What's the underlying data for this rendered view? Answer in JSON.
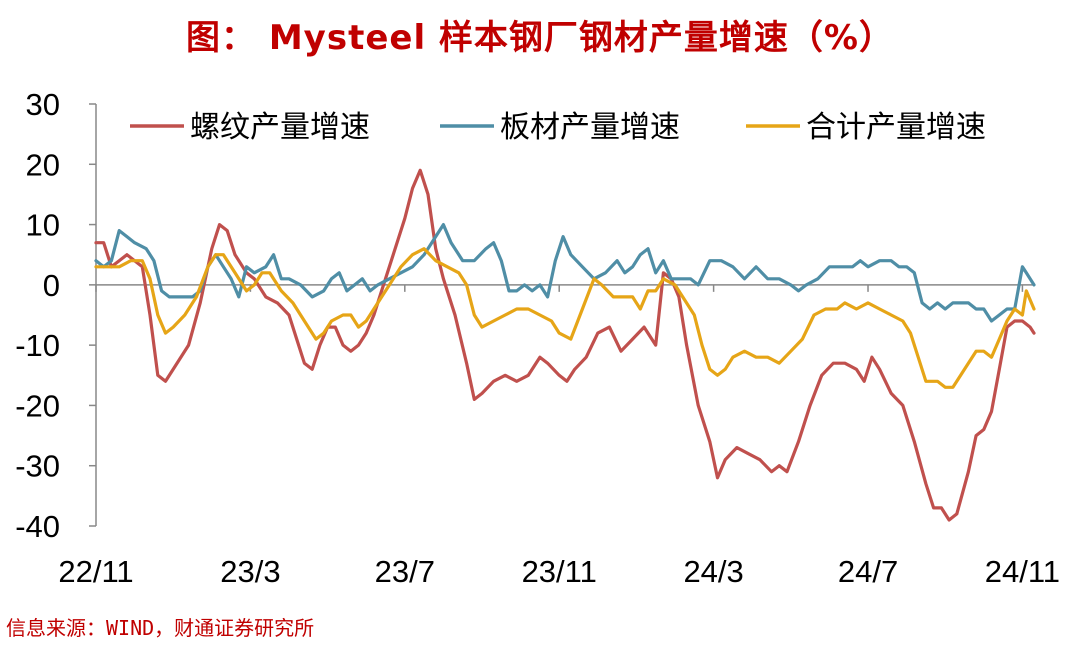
{
  "title": "图： Mysteel 样本钢厂钢材产量增速（%）",
  "source": "信息来源：WIND，财通证券研究所",
  "chart_data": {
    "type": "line",
    "title": "图： Mysteel 样本钢厂钢材产量增速（%）",
    "xlabel": "",
    "ylabel": "",
    "ylim": [
      -40,
      30
    ],
    "yticks": [
      "30",
      "20",
      "10",
      "0",
      "-10",
      "-20",
      "-30",
      "-40"
    ],
    "ytick_values": [
      30,
      20,
      10,
      0,
      -10,
      -20,
      -30,
      -40
    ],
    "xticks": [
      "22/11",
      "23/3",
      "23/7",
      "23/11",
      "24/3",
      "24/7",
      "24/11"
    ],
    "xtick_positions": [
      0,
      4,
      8,
      12,
      16,
      20,
      24
    ],
    "xlim": [
      0,
      24.3
    ],
    "grid": false,
    "legend": "top",
    "colors": {
      "rebar": "#c0504d",
      "plate": "#4f8ea6",
      "total": "#e6a517",
      "axis": "#888888"
    },
    "series": [
      {
        "name": "螺纹产量增速",
        "color": "#c0504d",
        "points": [
          [
            0,
            7
          ],
          [
            0.2,
            7
          ],
          [
            0.4,
            3
          ],
          [
            0.6,
            4
          ],
          [
            0.8,
            5
          ],
          [
            1.0,
            4
          ],
          [
            1.2,
            3
          ],
          [
            1.4,
            -5
          ],
          [
            1.6,
            -15
          ],
          [
            1.8,
            -16
          ],
          [
            2.0,
            -14
          ],
          [
            2.4,
            -10
          ],
          [
            2.7,
            -3
          ],
          [
            3.0,
            6
          ],
          [
            3.2,
            10
          ],
          [
            3.4,
            9
          ],
          [
            3.6,
            5
          ],
          [
            3.9,
            2
          ],
          [
            4.1,
            1
          ],
          [
            4.4,
            -2
          ],
          [
            4.7,
            -3
          ],
          [
            5.0,
            -5
          ],
          [
            5.2,
            -9
          ],
          [
            5.4,
            -13
          ],
          [
            5.6,
            -14
          ],
          [
            5.8,
            -10
          ],
          [
            6.0,
            -7
          ],
          [
            6.2,
            -7
          ],
          [
            6.4,
            -10
          ],
          [
            6.6,
            -11
          ],
          [
            6.8,
            -10
          ],
          [
            7.0,
            -8
          ],
          [
            7.2,
            -5
          ],
          [
            7.4,
            -1
          ],
          [
            7.7,
            5
          ],
          [
            8.0,
            11
          ],
          [
            8.2,
            16
          ],
          [
            8.4,
            19
          ],
          [
            8.6,
            15
          ],
          [
            8.8,
            6
          ],
          [
            9.0,
            1
          ],
          [
            9.3,
            -5
          ],
          [
            9.6,
            -13
          ],
          [
            9.8,
            -19
          ],
          [
            10.0,
            -18
          ],
          [
            10.3,
            -16
          ],
          [
            10.6,
            -15
          ],
          [
            10.9,
            -16
          ],
          [
            11.2,
            -15
          ],
          [
            11.5,
            -12
          ],
          [
            11.7,
            -13
          ],
          [
            12.0,
            -15
          ],
          [
            12.2,
            -16
          ],
          [
            12.4,
            -14
          ],
          [
            12.7,
            -12
          ],
          [
            13.0,
            -8
          ],
          [
            13.3,
            -7
          ],
          [
            13.6,
            -11
          ],
          [
            13.9,
            -9
          ],
          [
            14.2,
            -7
          ],
          [
            14.5,
            -10
          ],
          [
            14.7,
            2
          ],
          [
            14.9,
            1
          ],
          [
            15.1,
            -2
          ],
          [
            15.3,
            -10
          ],
          [
            15.6,
            -20
          ],
          [
            15.9,
            -26
          ],
          [
            16.1,
            -32
          ],
          [
            16.3,
            -29
          ],
          [
            16.6,
            -27
          ],
          [
            16.9,
            -28
          ],
          [
            17.2,
            -29
          ],
          [
            17.5,
            -31
          ],
          [
            17.7,
            -30
          ],
          [
            17.9,
            -31
          ],
          [
            18.2,
            -26
          ],
          [
            18.5,
            -20
          ],
          [
            18.8,
            -15
          ],
          [
            19.1,
            -13
          ],
          [
            19.4,
            -13
          ],
          [
            19.7,
            -14
          ],
          [
            19.9,
            -16
          ],
          [
            20.1,
            -12
          ],
          [
            20.3,
            -14
          ],
          [
            20.6,
            -18
          ],
          [
            20.9,
            -20
          ],
          [
            21.2,
            -26
          ],
          [
            21.5,
            -33
          ],
          [
            21.7,
            -37
          ],
          [
            21.9,
            -37
          ],
          [
            22.1,
            -39
          ],
          [
            22.3,
            -38
          ],
          [
            22.6,
            -31
          ],
          [
            22.8,
            -25
          ],
          [
            23.0,
            -24
          ],
          [
            23.2,
            -21
          ],
          [
            23.4,
            -14
          ],
          [
            23.6,
            -7
          ],
          [
            23.8,
            -6
          ],
          [
            24.0,
            -6
          ],
          [
            24.2,
            -7
          ],
          [
            24.3,
            -8
          ]
        ]
      },
      {
        "name": "板材产量增速",
        "color": "#4f8ea6",
        "points": [
          [
            0,
            4
          ],
          [
            0.2,
            3
          ],
          [
            0.4,
            4
          ],
          [
            0.6,
            9
          ],
          [
            0.8,
            8
          ],
          [
            1.0,
            7
          ],
          [
            1.3,
            6
          ],
          [
            1.5,
            4
          ],
          [
            1.7,
            -1
          ],
          [
            1.9,
            -2
          ],
          [
            2.2,
            -2
          ],
          [
            2.5,
            -2
          ],
          [
            2.7,
            -1
          ],
          [
            2.9,
            3
          ],
          [
            3.1,
            5
          ],
          [
            3.3,
            3
          ],
          [
            3.5,
            1
          ],
          [
            3.7,
            -2
          ],
          [
            3.9,
            3
          ],
          [
            4.1,
            2
          ],
          [
            4.4,
            3
          ],
          [
            4.6,
            5
          ],
          [
            4.8,
            1
          ],
          [
            5.0,
            1
          ],
          [
            5.3,
            0
          ],
          [
            5.6,
            -2
          ],
          [
            5.9,
            -1
          ],
          [
            6.1,
            1
          ],
          [
            6.3,
            2
          ],
          [
            6.5,
            -1
          ],
          [
            6.7,
            0
          ],
          [
            6.9,
            1
          ],
          [
            7.1,
            -1
          ],
          [
            7.3,
            0
          ],
          [
            7.6,
            1
          ],
          [
            7.9,
            2
          ],
          [
            8.2,
            3
          ],
          [
            8.5,
            5
          ],
          [
            8.8,
            8
          ],
          [
            9.0,
            10
          ],
          [
            9.2,
            7
          ],
          [
            9.5,
            4
          ],
          [
            9.8,
            4
          ],
          [
            10.1,
            6
          ],
          [
            10.3,
            7
          ],
          [
            10.5,
            4
          ],
          [
            10.7,
            -1
          ],
          [
            10.9,
            -1
          ],
          [
            11.1,
            0
          ],
          [
            11.3,
            -1
          ],
          [
            11.5,
            0
          ],
          [
            11.7,
            -2
          ],
          [
            11.9,
            4
          ],
          [
            12.1,
            8
          ],
          [
            12.3,
            5
          ],
          [
            12.6,
            3
          ],
          [
            12.9,
            1
          ],
          [
            13.2,
            2
          ],
          [
            13.5,
            4
          ],
          [
            13.7,
            2
          ],
          [
            13.9,
            3
          ],
          [
            14.1,
            5
          ],
          [
            14.3,
            6
          ],
          [
            14.5,
            2
          ],
          [
            14.7,
            4
          ],
          [
            14.9,
            1
          ],
          [
            15.1,
            1
          ],
          [
            15.4,
            1
          ],
          [
            15.6,
            0
          ],
          [
            15.9,
            4
          ],
          [
            16.2,
            4
          ],
          [
            16.5,
            3
          ],
          [
            16.8,
            1
          ],
          [
            17.1,
            3
          ],
          [
            17.4,
            1
          ],
          [
            17.7,
            1
          ],
          [
            18.0,
            0
          ],
          [
            18.2,
            -1
          ],
          [
            18.4,
            0
          ],
          [
            18.7,
            1
          ],
          [
            19.0,
            3
          ],
          [
            19.3,
            3
          ],
          [
            19.6,
            3
          ],
          [
            19.8,
            4
          ],
          [
            20.0,
            3
          ],
          [
            20.3,
            4
          ],
          [
            20.6,
            4
          ],
          [
            20.8,
            3
          ],
          [
            21.0,
            3
          ],
          [
            21.2,
            2
          ],
          [
            21.4,
            -3
          ],
          [
            21.6,
            -4
          ],
          [
            21.8,
            -3
          ],
          [
            22.0,
            -4
          ],
          [
            22.2,
            -3
          ],
          [
            22.4,
            -3
          ],
          [
            22.6,
            -3
          ],
          [
            22.8,
            -4
          ],
          [
            23.0,
            -4
          ],
          [
            23.2,
            -6
          ],
          [
            23.4,
            -5
          ],
          [
            23.6,
            -4
          ],
          [
            23.8,
            -4
          ],
          [
            24.0,
            3
          ],
          [
            24.1,
            2
          ],
          [
            24.3,
            0
          ]
        ]
      },
      {
        "name": "合计产量增速",
        "color": "#e6a517",
        "points": [
          [
            0,
            3
          ],
          [
            0.3,
            3
          ],
          [
            0.6,
            3
          ],
          [
            0.9,
            4
          ],
          [
            1.2,
            4
          ],
          [
            1.4,
            1
          ],
          [
            1.6,
            -5
          ],
          [
            1.8,
            -8
          ],
          [
            2.0,
            -7
          ],
          [
            2.3,
            -5
          ],
          [
            2.6,
            -2
          ],
          [
            2.9,
            3
          ],
          [
            3.1,
            5
          ],
          [
            3.3,
            5
          ],
          [
            3.6,
            2
          ],
          [
            3.9,
            -1
          ],
          [
            4.1,
            0
          ],
          [
            4.3,
            2
          ],
          [
            4.5,
            2
          ],
          [
            4.8,
            -1
          ],
          [
            5.1,
            -3
          ],
          [
            5.4,
            -6
          ],
          [
            5.7,
            -9
          ],
          [
            5.9,
            -8
          ],
          [
            6.1,
            -6
          ],
          [
            6.4,
            -5
          ],
          [
            6.6,
            -5
          ],
          [
            6.8,
            -7
          ],
          [
            7.0,
            -6
          ],
          [
            7.3,
            -3
          ],
          [
            7.6,
            0
          ],
          [
            7.9,
            3
          ],
          [
            8.2,
            5
          ],
          [
            8.5,
            6
          ],
          [
            8.8,
            4
          ],
          [
            9.1,
            3
          ],
          [
            9.4,
            2
          ],
          [
            9.6,
            0
          ],
          [
            9.8,
            -5
          ],
          [
            10.0,
            -7
          ],
          [
            10.3,
            -6
          ],
          [
            10.6,
            -5
          ],
          [
            10.9,
            -4
          ],
          [
            11.2,
            -4
          ],
          [
            11.5,
            -5
          ],
          [
            11.8,
            -6
          ],
          [
            12.0,
            -8
          ],
          [
            12.3,
            -9
          ],
          [
            12.6,
            -4
          ],
          [
            12.9,
            1
          ],
          [
            13.1,
            0
          ],
          [
            13.4,
            -2
          ],
          [
            13.7,
            -2
          ],
          [
            13.9,
            -2
          ],
          [
            14.1,
            -4
          ],
          [
            14.3,
            -1
          ],
          [
            14.5,
            -1
          ],
          [
            14.7,
            1
          ],
          [
            15.0,
            0
          ],
          [
            15.2,
            -2
          ],
          [
            15.5,
            -5
          ],
          [
            15.7,
            -10
          ],
          [
            15.9,
            -14
          ],
          [
            16.1,
            -15
          ],
          [
            16.3,
            -14
          ],
          [
            16.5,
            -12
          ],
          [
            16.8,
            -11
          ],
          [
            17.1,
            -12
          ],
          [
            17.4,
            -12
          ],
          [
            17.7,
            -13
          ],
          [
            18.0,
            -11
          ],
          [
            18.3,
            -9
          ],
          [
            18.6,
            -5
          ],
          [
            18.9,
            -4
          ],
          [
            19.2,
            -4
          ],
          [
            19.4,
            -3
          ],
          [
            19.7,
            -4
          ],
          [
            20.0,
            -3
          ],
          [
            20.3,
            -4
          ],
          [
            20.6,
            -5
          ],
          [
            20.9,
            -6
          ],
          [
            21.1,
            -8
          ],
          [
            21.3,
            -12
          ],
          [
            21.5,
            -16
          ],
          [
            21.8,
            -16
          ],
          [
            22.0,
            -17
          ],
          [
            22.2,
            -17
          ],
          [
            22.5,
            -14
          ],
          [
            22.8,
            -11
          ],
          [
            23.0,
            -11
          ],
          [
            23.2,
            -12
          ],
          [
            23.4,
            -9
          ],
          [
            23.6,
            -6
          ],
          [
            23.8,
            -4
          ],
          [
            24.0,
            -5
          ],
          [
            24.1,
            -1
          ],
          [
            24.3,
            -4
          ]
        ]
      }
    ]
  }
}
